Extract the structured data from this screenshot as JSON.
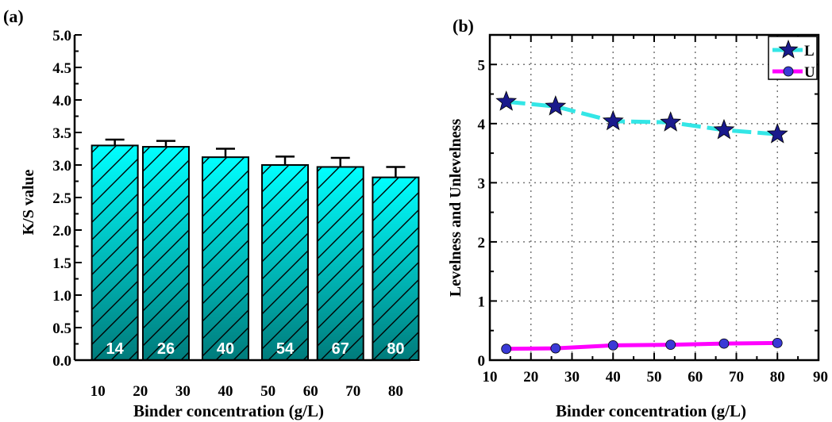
{
  "chart_data": [
    {
      "type": "bar",
      "panel_label": "(a)",
      "categories": [
        "14",
        "26",
        "40",
        "54",
        "67",
        "80"
      ],
      "x": [
        14,
        26,
        40,
        54,
        67,
        80
      ],
      "values": [
        3.3,
        3.28,
        3.12,
        3.0,
        2.97,
        2.81
      ],
      "errors": [
        0.09,
        0.09,
        0.13,
        0.13,
        0.14,
        0.16
      ],
      "bar_labels": [
        "14",
        "26",
        "40",
        "54",
        "67",
        "80"
      ],
      "xlabel": "Binder concentration (g/L)",
      "ylabel": "K/S value",
      "xticks": [
        "10",
        "20",
        "30",
        "40",
        "50",
        "60",
        "70",
        "80"
      ],
      "yticks": [
        "0.0",
        "0.5",
        "1.0",
        "1.5",
        "2.0",
        "2.5",
        "3.0",
        "3.5",
        "4.0",
        "4.5",
        "5.0"
      ],
      "ylim": [
        0,
        5
      ],
      "colors": {
        "bar_top": "#00ffff",
        "bar_bottom": "#007b7b",
        "hatch": "#000000"
      }
    },
    {
      "type": "line",
      "panel_label": "(b)",
      "x": [
        14,
        26,
        40,
        54,
        67,
        80
      ],
      "series": [
        {
          "name": "L",
          "values": [
            4.37,
            4.29,
            4.04,
            4.02,
            3.89,
            3.82
          ],
          "line_color": "#33e6e6",
          "marker": "star",
          "marker_color": "#1a1a8c"
        },
        {
          "name": "U",
          "values": [
            0.19,
            0.2,
            0.25,
            0.26,
            0.28,
            0.29
          ],
          "line_color": "#ff00ff",
          "marker": "circle",
          "marker_color": "#3a3ad6"
        }
      ],
      "xlabel": "Binder concentration (g/L)",
      "ylabel": "Levelness and Unlevelness",
      "xticks": [
        "10",
        "20",
        "30",
        "40",
        "50",
        "60",
        "70",
        "80",
        "90"
      ],
      "yticks": [
        "0",
        "1",
        "2",
        "3",
        "4",
        "5"
      ],
      "xlim": [
        10,
        90
      ],
      "ylim": [
        0,
        5.5
      ],
      "grid": true,
      "legend_position": "top-right"
    }
  ]
}
